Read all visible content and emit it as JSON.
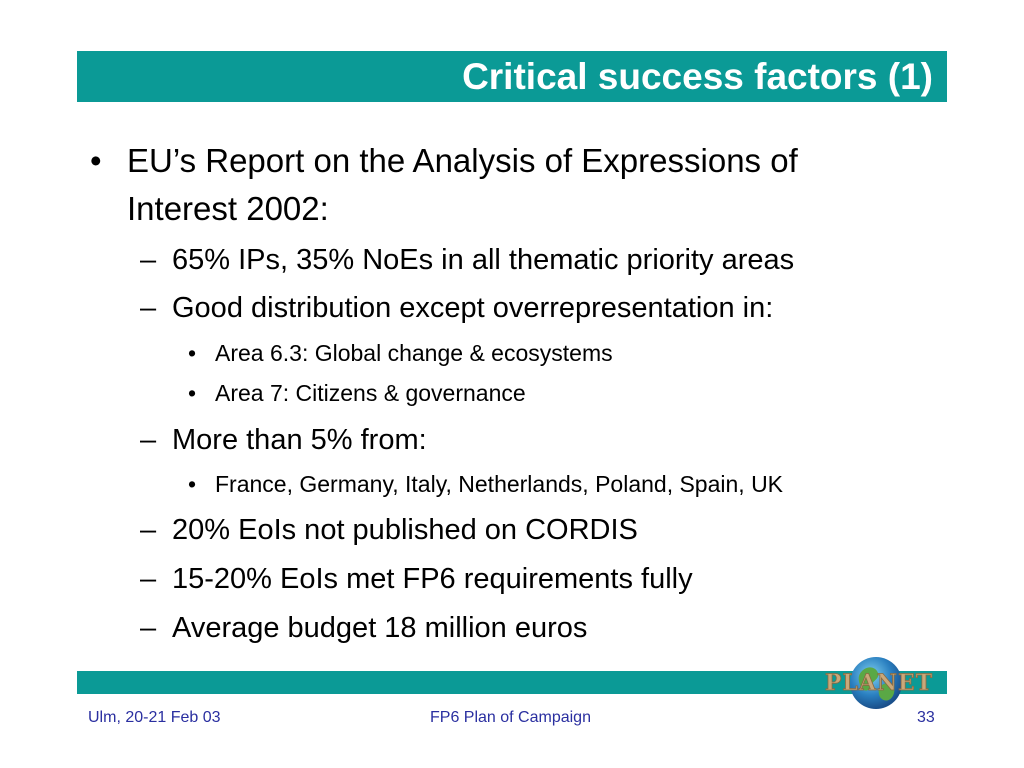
{
  "slide": {
    "title": "Critical success factors (1)",
    "bullet_marker": "•",
    "dash_marker": "–",
    "items": [
      {
        "level": 1,
        "text_line1": "EU’s Report on the Analysis of Expressions of",
        "text_line2": "Interest 2002:"
      },
      {
        "level": 2,
        "text": "65% IPs, 35% NoEs in all thematic priority areas"
      },
      {
        "level": 2,
        "text": "Good distribution except overrepresentation in:"
      },
      {
        "level": 3,
        "text": "Area 6.3: Global change & ecosystems"
      },
      {
        "level": 3,
        "text": "Area 7: Citizens & governance"
      },
      {
        "level": 2,
        "text": "More than 5% from:"
      },
      {
        "level": 3,
        "text": "France, Germany, Italy, Netherlands, Poland, Spain, UK"
      },
      {
        "level": 2,
        "text": "20% EoIs not published on CORDIS"
      },
      {
        "level": 2,
        "text": "15-20% EoIs met FP6 requirements fully"
      },
      {
        "level": 2,
        "text": "Average budget 18 million euros"
      }
    ]
  },
  "logo": {
    "text": "PLANET",
    "icon": "globe-icon"
  },
  "footer": {
    "left": "Ulm, 20-21 Feb 03",
    "center": "FP6 Plan of Campaign",
    "page_number": "33"
  },
  "colors": {
    "accent": "#0b9a96",
    "footer_text": "#2a2fa0",
    "logo_text": "#c9a87a"
  }
}
